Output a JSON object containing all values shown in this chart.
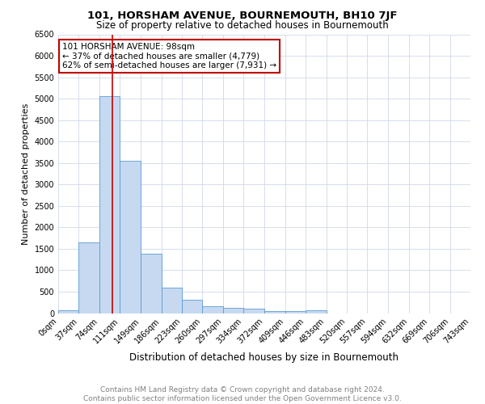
{
  "title": "101, HORSHAM AVENUE, BOURNEMOUTH, BH10 7JF",
  "subtitle": "Size of property relative to detached houses in Bournemouth",
  "xlabel": "Distribution of detached houses by size in Bournemouth",
  "ylabel": "Number of detached properties",
  "footnote1": "Contains HM Land Registry data © Crown copyright and database right 2024.",
  "footnote2": "Contains public sector information licensed under the Open Government Licence v3.0.",
  "annotation_line1": "101 HORSHAM AVENUE: 98sqm",
  "annotation_line2": "← 37% of detached houses are smaller (4,779)",
  "annotation_line3": "62% of semi-detached houses are larger (7,931) →",
  "bin_labels": [
    "0sqm",
    "37sqm",
    "74sqm",
    "111sqm",
    "149sqm",
    "186sqm",
    "223sqm",
    "260sqm",
    "297sqm",
    "334sqm",
    "372sqm",
    "409sqm",
    "446sqm",
    "483sqm",
    "520sqm",
    "557sqm",
    "594sqm",
    "632sqm",
    "669sqm",
    "706sqm",
    "743sqm"
  ],
  "bin_edges": [
    0,
    37,
    74,
    111,
    149,
    186,
    223,
    260,
    297,
    334,
    372,
    409,
    446,
    483,
    520,
    557,
    594,
    632,
    669,
    706,
    743
  ],
  "bar_heights": [
    75,
    1650,
    5050,
    3560,
    1380,
    590,
    305,
    155,
    115,
    95,
    45,
    40,
    65,
    0,
    0,
    0,
    0,
    0,
    0,
    0
  ],
  "bar_color": "#c6d9f0",
  "bar_edge_color": "#5b9bd5",
  "property_size": 98,
  "red_line_color": "#c00000",
  "annotation_box_edge_color": "#c00000",
  "ylim": [
    0,
    6500
  ],
  "yticks": [
    0,
    500,
    1000,
    1500,
    2000,
    2500,
    3000,
    3500,
    4000,
    4500,
    5000,
    5500,
    6000,
    6500
  ],
  "grid_color": "#d0d8e8",
  "background_color": "#ffffff",
  "title_fontsize": 9.5,
  "subtitle_fontsize": 8.5,
  "xlabel_fontsize": 8.5,
  "ylabel_fontsize": 8,
  "tick_fontsize": 7,
  "annotation_fontsize": 7.5,
  "footnote_fontsize": 6.5
}
